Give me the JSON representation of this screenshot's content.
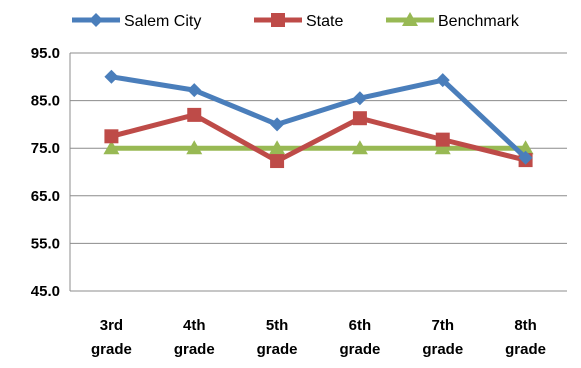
{
  "chart_data": {
    "type": "line",
    "title": "",
    "xlabel": "",
    "ylabel": "",
    "categories": [
      [
        "3rd",
        "grade"
      ],
      [
        "4th",
        "grade"
      ],
      [
        "5th",
        "grade"
      ],
      [
        "6th",
        "grade"
      ],
      [
        "7th",
        "grade"
      ],
      [
        "8th",
        "grade"
      ]
    ],
    "ylim": [
      45,
      95
    ],
    "yticks": [
      "95.0",
      "85.0",
      "75.0",
      "65.0",
      "55.0",
      "45.0"
    ],
    "ytick_values": [
      95,
      85,
      75,
      65,
      55,
      45
    ],
    "grid": true,
    "legend_position": "top",
    "series": [
      {
        "name": "Salem City",
        "color": "#4a7ebb",
        "marker": "diamond",
        "values": [
          90.0,
          87.2,
          80.0,
          85.5,
          89.3,
          73.0
        ]
      },
      {
        "name": "State",
        "color": "#be4b48",
        "marker": "square",
        "values": [
          77.5,
          82.0,
          72.3,
          81.3,
          76.8,
          72.5
        ]
      },
      {
        "name": "Benchmark",
        "color": "#98b954",
        "marker": "triangle",
        "values": [
          75.0,
          75.0,
          75.0,
          75.0,
          75.0,
          75.0
        ]
      }
    ]
  }
}
